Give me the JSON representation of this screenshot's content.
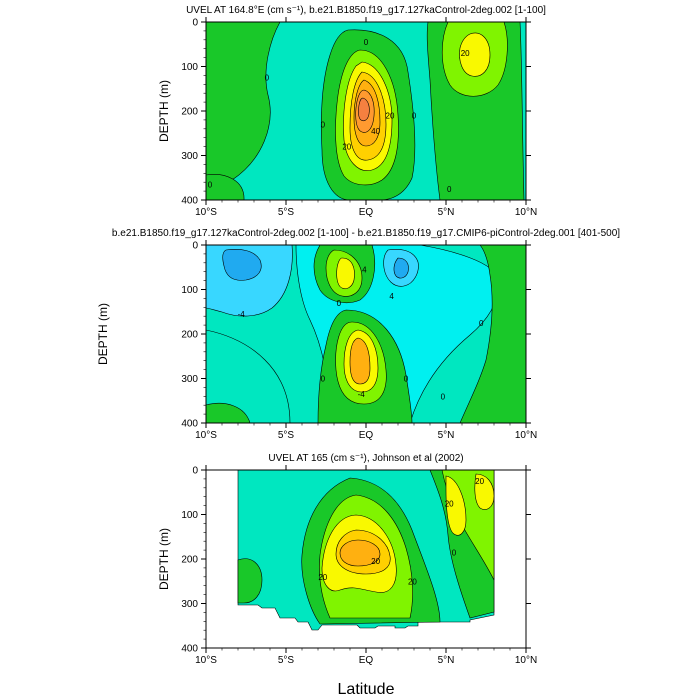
{
  "figure": {
    "xlabel": "Latitude",
    "ylabel": "DEPTH (m)"
  },
  "chart_data": [
    {
      "type": "heatmap",
      "title": "UVEL AT 164.8°E (cm s⁻¹), b.e21.B1850.f19_g17.127kaControl-2deg.002 [1-100]",
      "xlabel": "Latitude",
      "ylabel": "DEPTH (m)",
      "xlim": [
        -10,
        10
      ],
      "ylim": [
        400,
        0
      ],
      "x_ticks": [
        "10°S",
        "5°S",
        "EQ",
        "5°N",
        "10°N"
      ],
      "y_ticks": [
        "0",
        "100",
        "200",
        "300",
        "400"
      ],
      "contour_labels": [
        {
          "text": "0",
          "lat": 0.0,
          "depth": 45
        },
        {
          "text": "0",
          "lat": -6.2,
          "depth": 125
        },
        {
          "text": "0",
          "lat": -2.7,
          "depth": 230
        },
        {
          "text": "0",
          "lat": -11.0,
          "depth": 365
        },
        {
          "text": "0",
          "lat": 3.0,
          "depth": 210
        },
        {
          "text": "0",
          "lat": 5.2,
          "depth": 375
        },
        {
          "text": "20",
          "lat": 1.5,
          "depth": 210
        },
        {
          "text": "20",
          "lat": -1.2,
          "depth": 280
        },
        {
          "text": "40",
          "lat": 0.6,
          "depth": 245
        },
        {
          "text": "20",
          "lat": 6.2,
          "depth": 70
        }
      ],
      "features": [
        {
          "kind": "jet-max",
          "lat": -0.2,
          "depth": 185,
          "value": 60
        },
        {
          "kind": "max",
          "lat": 5.3,
          "depth": 65,
          "value": 25
        }
      ]
    },
    {
      "type": "heatmap",
      "title": "b.e21.B1850.f19_g17.127kaControl-2deg.002 [1-100] - b.e21.B1850.f19_g17.CMIP6-piControl-2deg.001 [401-500]",
      "xlabel": "Latitude",
      "ylabel": "DEPTH (m)",
      "xlim": [
        -10,
        10
      ],
      "ylim": [
        400,
        0
      ],
      "x_ticks": [
        "10°S",
        "5°S",
        "EQ",
        "5°N",
        "10°N"
      ],
      "y_ticks": [
        "0",
        "100",
        "200",
        "300",
        "400"
      ],
      "contour_labels": [
        {
          "text": "4",
          "lat": -0.1,
          "depth": 55
        },
        {
          "text": "4",
          "lat": 1.6,
          "depth": 115
        },
        {
          "text": "0",
          "lat": -1.7,
          "depth": 130
        },
        {
          "text": "-4",
          "lat": -7.8,
          "depth": 155
        },
        {
          "text": "0",
          "lat": -2.7,
          "depth": 300
        },
        {
          "text": "-4",
          "lat": -0.3,
          "depth": 335
        },
        {
          "text": "0",
          "lat": 2.5,
          "depth": 300
        },
        {
          "text": "0",
          "lat": 4.8,
          "depth": 340
        },
        {
          "text": "0",
          "lat": 7.2,
          "depth": 175
        }
      ],
      "features": [
        {
          "kind": "max",
          "lat": -0.3,
          "depth": 50,
          "value": 8
        },
        {
          "kind": "max",
          "lat": -0.3,
          "depth": 225,
          "value": 10
        },
        {
          "kind": "min",
          "lat": -7.8,
          "depth": 30,
          "value": -8
        },
        {
          "kind": "min",
          "lat": 2.3,
          "depth": 65,
          "value": -8
        }
      ]
    },
    {
      "type": "heatmap",
      "title": "UVEL AT 165 (cm s⁻¹), Johnson et al (2002)",
      "xlabel": "Latitude",
      "ylabel": "DEPTH (m)",
      "xlim": [
        -10,
        10
      ],
      "ylim": [
        400,
        0
      ],
      "x_ticks": [
        "10°S",
        "5°S",
        "EQ",
        "5°N",
        "10°N"
      ],
      "y_ticks": [
        "0",
        "100",
        "200",
        "300",
        "400"
      ],
      "data_extent": {
        "lat": [
          -8,
          8
        ],
        "depth": [
          10,
          340
        ]
      },
      "contour_labels": [
        {
          "text": "20",
          "lat": 5.2,
          "depth": 75
        },
        {
          "text": "20",
          "lat": 7.1,
          "depth": 25
        },
        {
          "text": "0",
          "lat": 5.5,
          "depth": 185
        },
        {
          "text": "20",
          "lat": -2.7,
          "depth": 240
        },
        {
          "text": "20",
          "lat": 2.9,
          "depth": 250
        },
        {
          "text": "20",
          "lat": 0.6,
          "depth": 205
        }
      ],
      "features": [
        {
          "kind": "jet-max",
          "lat": -0.3,
          "depth": 185,
          "value": 40
        }
      ]
    }
  ]
}
